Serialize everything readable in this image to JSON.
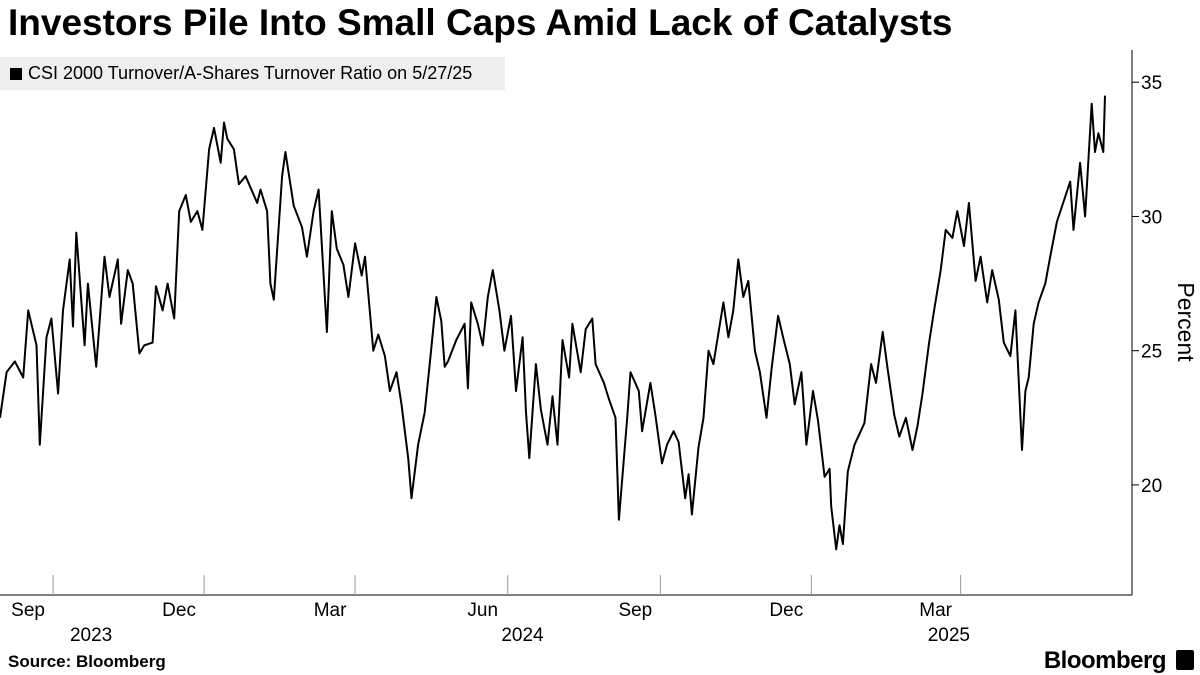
{
  "header": {
    "title": "Investors Pile Into Small Caps Amid Lack of Catalysts"
  },
  "legend": {
    "label": "CSI 2000 Turnover/A-Shares Turnover Ratio on 5/27/25"
  },
  "footer": {
    "source": "Source: Bloomberg",
    "brand": "Bloomberg"
  },
  "colors": {
    "line": "#000000",
    "background": "#ffffff",
    "legend_bg": "#eeeeee"
  },
  "chart_data": {
    "type": "line",
    "ylabel": "Percent",
    "ylim": [
      15.9,
      36.2
    ],
    "yticks": [
      20,
      25,
      30,
      35
    ],
    "y_axis_position": "right",
    "grid": false,
    "legend_position": "top-left",
    "x_range": [
      "2023-07-31",
      "2025-05-27"
    ],
    "month_ticks": [
      {
        "label": "Sep",
        "date": "2023-09-01"
      },
      {
        "label": "Dec",
        "date": "2023-12-01"
      },
      {
        "label": "Mar",
        "date": "2024-03-01"
      },
      {
        "label": "Jun",
        "date": "2024-06-01"
      },
      {
        "label": "Sep",
        "date": "2024-09-01"
      },
      {
        "label": "Dec",
        "date": "2024-12-01"
      },
      {
        "label": "Mar",
        "date": "2025-03-01"
      }
    ],
    "year_labels": [
      {
        "label": "2023",
        "date": "2023-10-15"
      },
      {
        "label": "2024",
        "date": "2024-07-01"
      },
      {
        "label": "2025",
        "date": "2025-03-15"
      }
    ],
    "series": [
      {
        "values": [
          [
            "2023-07-31",
            22.5
          ],
          [
            "2023-08-04",
            24.2
          ],
          [
            "2023-08-09",
            24.6
          ],
          [
            "2023-08-14",
            24.0
          ],
          [
            "2023-08-17",
            26.5
          ],
          [
            "2023-08-22",
            25.2
          ],
          [
            "2023-08-24",
            21.5
          ],
          [
            "2023-08-28",
            25.5
          ],
          [
            "2023-08-31",
            26.2
          ],
          [
            "2023-09-04",
            23.4
          ],
          [
            "2023-09-07",
            26.5
          ],
          [
            "2023-09-11",
            28.4
          ],
          [
            "2023-09-13",
            25.9
          ],
          [
            "2023-09-15",
            29.4
          ],
          [
            "2023-09-20",
            25.2
          ],
          [
            "2023-09-22",
            27.5
          ],
          [
            "2023-09-27",
            24.4
          ],
          [
            "2023-10-02",
            28.5
          ],
          [
            "2023-10-05",
            27.0
          ],
          [
            "2023-10-10",
            28.4
          ],
          [
            "2023-10-12",
            26.0
          ],
          [
            "2023-10-16",
            28.0
          ],
          [
            "2023-10-19",
            27.5
          ],
          [
            "2023-10-23",
            24.9
          ],
          [
            "2023-10-26",
            25.2
          ],
          [
            "2023-10-31",
            25.3
          ],
          [
            "2023-11-02",
            27.4
          ],
          [
            "2023-11-06",
            26.5
          ],
          [
            "2023-11-09",
            27.5
          ],
          [
            "2023-11-13",
            26.2
          ],
          [
            "2023-11-16",
            30.2
          ],
          [
            "2023-11-20",
            30.8
          ],
          [
            "2023-11-23",
            29.8
          ],
          [
            "2023-11-27",
            30.2
          ],
          [
            "2023-11-30",
            29.5
          ],
          [
            "2023-12-04",
            32.5
          ],
          [
            "2023-12-07",
            33.3
          ],
          [
            "2023-12-11",
            32.0
          ],
          [
            "2023-12-13",
            33.5
          ],
          [
            "2023-12-15",
            32.9
          ],
          [
            "2023-12-19",
            32.5
          ],
          [
            "2023-12-22",
            31.2
          ],
          [
            "2023-12-26",
            31.5
          ],
          [
            "2024-01-02",
            30.5
          ],
          [
            "2024-01-04",
            31.0
          ],
          [
            "2024-01-08",
            30.2
          ],
          [
            "2024-01-10",
            27.5
          ],
          [
            "2024-01-12",
            26.9
          ],
          [
            "2024-01-17",
            31.5
          ],
          [
            "2024-01-19",
            32.4
          ],
          [
            "2024-01-24",
            30.4
          ],
          [
            "2024-01-29",
            29.6
          ],
          [
            "2024-02-01",
            28.5
          ],
          [
            "2024-02-05",
            30.2
          ],
          [
            "2024-02-08",
            31.0
          ],
          [
            "2024-02-13",
            25.7
          ],
          [
            "2024-02-16",
            30.2
          ],
          [
            "2024-02-19",
            28.8
          ],
          [
            "2024-02-23",
            28.2
          ],
          [
            "2024-02-26",
            27.0
          ],
          [
            "2024-03-01",
            29.0
          ],
          [
            "2024-03-05",
            27.8
          ],
          [
            "2024-03-07",
            28.5
          ],
          [
            "2024-03-12",
            25.0
          ],
          [
            "2024-03-15",
            25.6
          ],
          [
            "2024-03-19",
            24.8
          ],
          [
            "2024-03-22",
            23.5
          ],
          [
            "2024-03-26",
            24.2
          ],
          [
            "2024-03-29",
            23.0
          ],
          [
            "2024-04-02",
            21.0
          ],
          [
            "2024-04-04",
            19.5
          ],
          [
            "2024-04-08",
            21.5
          ],
          [
            "2024-04-12",
            22.7
          ],
          [
            "2024-04-15",
            24.5
          ],
          [
            "2024-04-19",
            27.0
          ],
          [
            "2024-04-22",
            26.1
          ],
          [
            "2024-04-24",
            24.4
          ],
          [
            "2024-04-26",
            24.6
          ],
          [
            "2024-05-01",
            25.4
          ],
          [
            "2024-05-06",
            26.0
          ],
          [
            "2024-05-08",
            23.6
          ],
          [
            "2024-05-10",
            26.8
          ],
          [
            "2024-05-14",
            26.0
          ],
          [
            "2024-05-17",
            25.2
          ],
          [
            "2024-05-20",
            27.0
          ],
          [
            "2024-05-23",
            28.0
          ],
          [
            "2024-05-27",
            26.5
          ],
          [
            "2024-05-30",
            25.0
          ],
          [
            "2024-06-03",
            26.3
          ],
          [
            "2024-06-06",
            23.5
          ],
          [
            "2024-06-10",
            25.5
          ],
          [
            "2024-06-12",
            22.7
          ],
          [
            "2024-06-14",
            21.0
          ],
          [
            "2024-06-18",
            24.5
          ],
          [
            "2024-06-21",
            22.8
          ],
          [
            "2024-06-25",
            21.5
          ],
          [
            "2024-06-28",
            23.3
          ],
          [
            "2024-07-01",
            21.5
          ],
          [
            "2024-07-04",
            25.4
          ],
          [
            "2024-07-08",
            24.0
          ],
          [
            "2024-07-10",
            26.0
          ],
          [
            "2024-07-15",
            24.2
          ],
          [
            "2024-07-18",
            25.8
          ],
          [
            "2024-07-22",
            26.2
          ],
          [
            "2024-07-24",
            24.5
          ],
          [
            "2024-07-29",
            23.8
          ],
          [
            "2024-08-01",
            23.2
          ],
          [
            "2024-08-05",
            22.5
          ],
          [
            "2024-08-07",
            18.7
          ],
          [
            "2024-08-12",
            22.5
          ],
          [
            "2024-08-14",
            24.2
          ],
          [
            "2024-08-19",
            23.5
          ],
          [
            "2024-08-21",
            22.0
          ],
          [
            "2024-08-26",
            23.8
          ],
          [
            "2024-08-29",
            22.6
          ],
          [
            "2024-09-02",
            20.8
          ],
          [
            "2024-09-05",
            21.5
          ],
          [
            "2024-09-09",
            22.0
          ],
          [
            "2024-09-12",
            21.6
          ],
          [
            "2024-09-16",
            19.5
          ],
          [
            "2024-09-18",
            20.4
          ],
          [
            "2024-09-20",
            18.9
          ],
          [
            "2024-09-24",
            21.4
          ],
          [
            "2024-09-27",
            22.5
          ],
          [
            "2024-09-30",
            25.0
          ],
          [
            "2024-10-03",
            24.5
          ],
          [
            "2024-10-09",
            26.8
          ],
          [
            "2024-10-12",
            25.5
          ],
          [
            "2024-10-15",
            26.5
          ],
          [
            "2024-10-18",
            28.4
          ],
          [
            "2024-10-21",
            27.0
          ],
          [
            "2024-10-24",
            27.6
          ],
          [
            "2024-10-28",
            25.0
          ],
          [
            "2024-10-31",
            24.2
          ],
          [
            "2024-11-04",
            22.5
          ],
          [
            "2024-11-07",
            24.3
          ],
          [
            "2024-11-11",
            26.3
          ],
          [
            "2024-11-14",
            25.5
          ],
          [
            "2024-11-18",
            24.5
          ],
          [
            "2024-11-21",
            23.0
          ],
          [
            "2024-11-25",
            24.2
          ],
          [
            "2024-11-28",
            21.5
          ],
          [
            "2024-12-02",
            23.5
          ],
          [
            "2024-12-05",
            22.4
          ],
          [
            "2024-12-09",
            20.3
          ],
          [
            "2024-12-12",
            20.6
          ],
          [
            "2024-12-13",
            19.2
          ],
          [
            "2024-12-16",
            17.6
          ],
          [
            "2024-12-18",
            18.5
          ],
          [
            "2024-12-20",
            17.8
          ],
          [
            "2024-12-23",
            20.5
          ],
          [
            "2024-12-27",
            21.5
          ],
          [
            "2025-01-02",
            22.3
          ],
          [
            "2025-01-06",
            24.5
          ],
          [
            "2025-01-09",
            23.8
          ],
          [
            "2025-01-13",
            25.7
          ],
          [
            "2025-01-16",
            24.3
          ],
          [
            "2025-01-20",
            22.6
          ],
          [
            "2025-01-23",
            21.8
          ],
          [
            "2025-01-27",
            22.5
          ],
          [
            "2025-01-31",
            21.3
          ],
          [
            "2025-02-03",
            22.2
          ],
          [
            "2025-02-06",
            23.4
          ],
          [
            "2025-02-10",
            25.3
          ],
          [
            "2025-02-13",
            26.5
          ],
          [
            "2025-02-17",
            28.0
          ],
          [
            "2025-02-20",
            29.5
          ],
          [
            "2025-02-24",
            29.2
          ],
          [
            "2025-02-27",
            30.2
          ],
          [
            "2025-03-03",
            28.9
          ],
          [
            "2025-03-06",
            30.5
          ],
          [
            "2025-03-10",
            27.6
          ],
          [
            "2025-03-13",
            28.5
          ],
          [
            "2025-03-17",
            26.8
          ],
          [
            "2025-03-20",
            28.0
          ],
          [
            "2025-03-24",
            26.9
          ],
          [
            "2025-03-27",
            25.3
          ],
          [
            "2025-03-31",
            24.8
          ],
          [
            "2025-04-03",
            26.5
          ],
          [
            "2025-04-07",
            21.3
          ],
          [
            "2025-04-09",
            23.5
          ],
          [
            "2025-04-11",
            24.0
          ],
          [
            "2025-04-14",
            26.0
          ],
          [
            "2025-04-17",
            26.8
          ],
          [
            "2025-04-21",
            27.5
          ],
          [
            "2025-04-24",
            28.5
          ],
          [
            "2025-04-28",
            29.8
          ],
          [
            "2025-05-06",
            31.3
          ],
          [
            "2025-05-08",
            29.5
          ],
          [
            "2025-05-12",
            32.0
          ],
          [
            "2025-05-15",
            30.0
          ],
          [
            "2025-05-19",
            34.2
          ],
          [
            "2025-05-21",
            32.4
          ],
          [
            "2025-05-23",
            33.1
          ],
          [
            "2025-05-26",
            32.4
          ],
          [
            "2025-05-27",
            34.5
          ]
        ]
      }
    ]
  }
}
